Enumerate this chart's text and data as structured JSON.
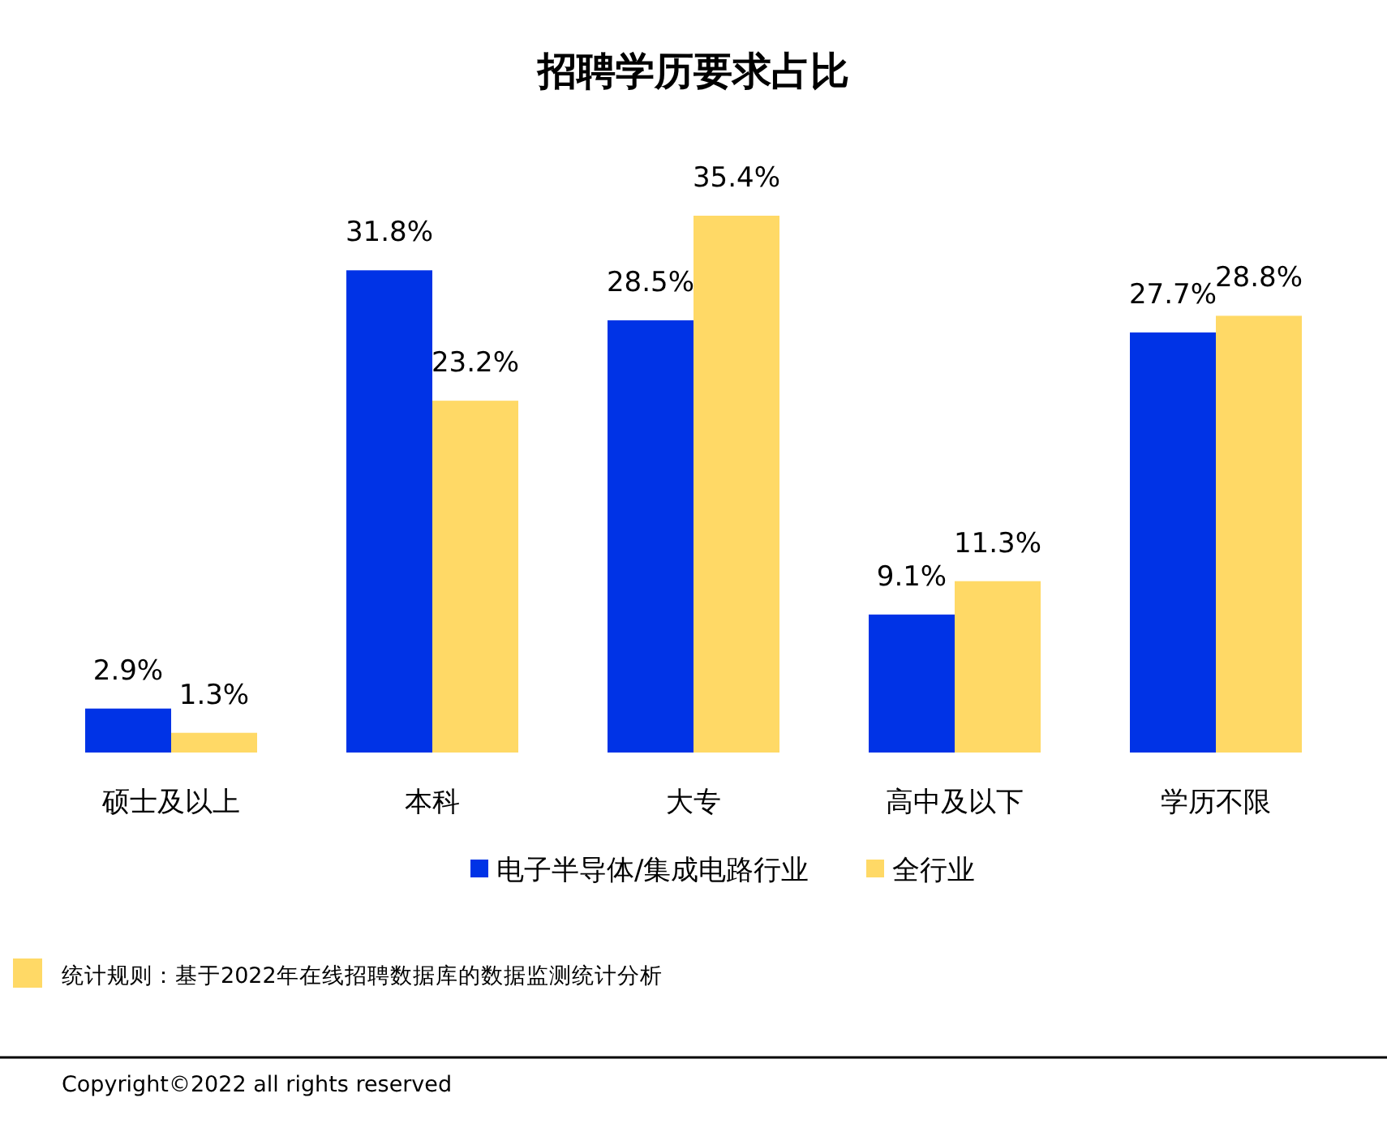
{
  "chart_data": {
    "type": "bar",
    "title": "招聘学历要求占比",
    "categories": [
      "硕士及以上",
      "本科",
      "大专",
      "高中及以下",
      "学历不限"
    ],
    "series": [
      {
        "name": "电子半导体/集成电路行业",
        "color": "#0033e6",
        "values": [
          2.9,
          31.8,
          28.5,
          9.1,
          27.7
        ],
        "value_labels": [
          "2.9%",
          "31.8%",
          "28.5%",
          "9.1%",
          "27.7%"
        ]
      },
      {
        "name": "全行业",
        "color": "#ffd966",
        "values": [
          1.3,
          23.2,
          35.4,
          11.3,
          28.8
        ],
        "value_labels": [
          "1.3%",
          "23.2%",
          "35.4%",
          "11.3%",
          "28.8%"
        ]
      }
    ],
    "legend": "bottom",
    "annotations": [
      "统计规则：基于2022年在线招聘数据库的数据监测统计分析",
      "Copyright©2022 all rights reserved"
    ]
  }
}
